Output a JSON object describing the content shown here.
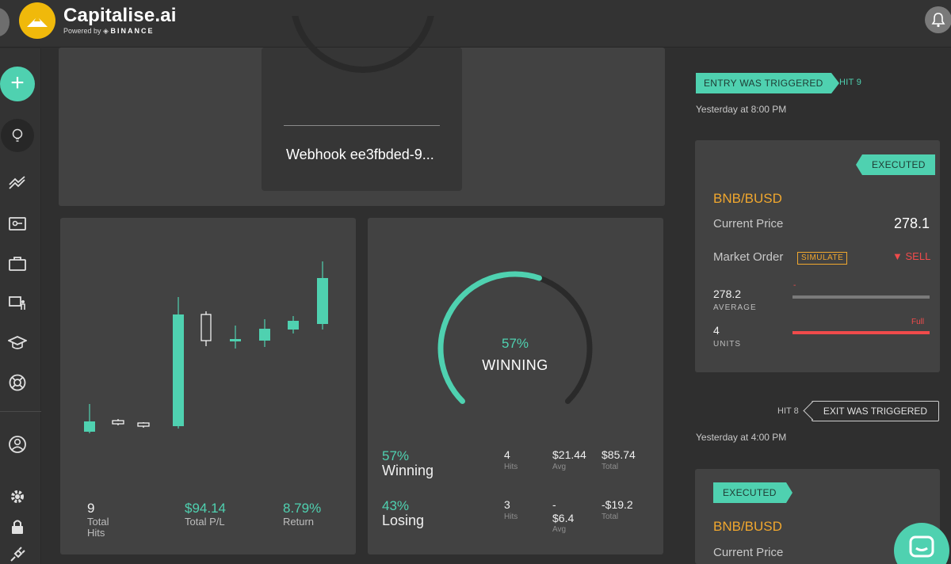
{
  "header": {
    "brand": "Capitalise.ai",
    "powered_by": "Powered by",
    "partner": "BINANCE"
  },
  "webhook_card": {
    "title": "Webhook ee3fbded-9..."
  },
  "candle_card": {
    "chart_data": {
      "type": "candlestick",
      "candles": [
        {
          "index": 1,
          "direction": "up"
        },
        {
          "index": 2,
          "direction": "down"
        },
        {
          "index": 3,
          "direction": "down"
        },
        {
          "index": 4,
          "direction": "up"
        },
        {
          "index": 5,
          "direction": "down"
        },
        {
          "index": 6,
          "direction": "up"
        },
        {
          "index": 7,
          "direction": "up"
        },
        {
          "index": 8,
          "direction": "up"
        },
        {
          "index": 9,
          "direction": "up"
        }
      ]
    },
    "total_hits_value": "9",
    "total_hits_label_1": "Total",
    "total_hits_label_2": "Hits",
    "total_pl_value": "$94.14",
    "total_pl_label": "Total P/L",
    "return_value": "8.79%",
    "return_label": "Return"
  },
  "win_card": {
    "gauge_percent": "57%",
    "gauge_label": "WINNING",
    "gauge_fraction": 0.57,
    "winning": {
      "pct": "57%",
      "label": "Winning",
      "hits": "4",
      "hits_label": "Hits",
      "avg": "$21.44",
      "avg_label": "Avg",
      "total": "$85.74",
      "total_label": "Total"
    },
    "losing": {
      "pct": "43%",
      "label": "Losing",
      "hits": "3",
      "hits_label": "Hits",
      "avg_1": "-",
      "avg_2": "$6.4",
      "avg_label": "Avg",
      "total": "-$19.2",
      "total_label": "Total"
    }
  },
  "feed": {
    "entry_tag": "ENTRY WAS TRIGGERED",
    "entry_hit": "HIT 9",
    "entry_time": "Yesterday at 8:00 PM",
    "order1": {
      "status": "EXECUTED",
      "pair": "BNB/BUSD",
      "current_price_label": "Current Price",
      "current_price": "278.1",
      "order_type": "Market Order",
      "simulate": "SIMULATE",
      "side": "SELL",
      "average_value": "278.2",
      "average_marker": "-",
      "average_label": "AVERAGE",
      "units_value": "4",
      "units_label": "UNITS",
      "units_fill_label": "Full"
    },
    "exit_hit": "HIT 8",
    "exit_tag": "EXIT WAS TRIGGERED",
    "exit_time": "Yesterday at 4:00 PM",
    "order2": {
      "status": "EXECUTED",
      "pair": "BNB/BUSD",
      "current_price_label": "Current Price"
    }
  },
  "colors": {
    "accent": "#4fd1b0",
    "pair": "#f0a72e",
    "sell": "#f04b4b",
    "logo": "#f0b90b"
  }
}
